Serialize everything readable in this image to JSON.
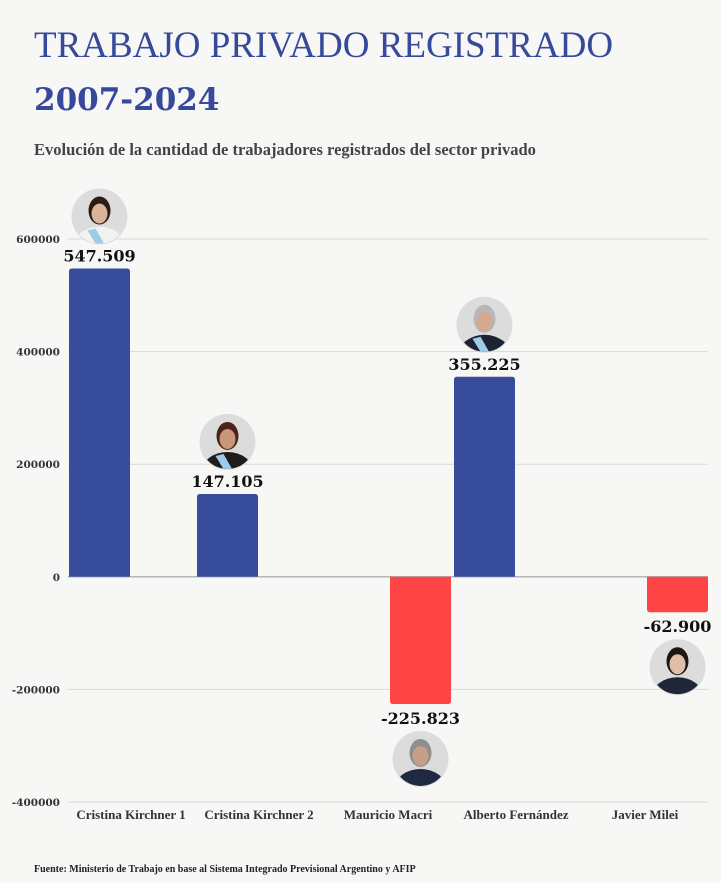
{
  "header": {
    "title_line1": "TRABAJO PRIVADO REGISTRADO",
    "title_line2": "2007-2024",
    "subtitle": "Evolución de la cantidad de trabajadores registrados del sector privado"
  },
  "footer": {
    "source": "Fuente: Ministerio de Trabajo en base al Sistema Integrado Previsional Argentino y AFIP"
  },
  "colors": {
    "positive": "#374c9a",
    "negative": "#fe4444",
    "title": "#36499a",
    "grid": "#d9d9d9",
    "background": "#f7f7f5"
  },
  "chart_data": {
    "type": "bar",
    "title": "TRABAJO PRIVADO REGISTRADO 2007-2024",
    "subtitle": "Evolución de la cantidad de trabajadores registrados del sector privado",
    "xlabel": "",
    "ylabel": "",
    "categories": [
      "Cristina Kirchner 1",
      "Cristina Kirchner 2",
      "Mauricio Macri",
      "Alberto Fernández",
      "Javier Milei"
    ],
    "values": [
      547509,
      147105,
      -225823,
      355225,
      -62900
    ],
    "data_labels": [
      "547.509",
      "147.105",
      "-225.823",
      "355.225",
      "-62.900"
    ],
    "portraits": [
      "portrait-cristina-kirchner-1",
      "portrait-cristina-kirchner-2",
      "portrait-mauricio-macri",
      "portrait-alberto-fernandez",
      "portrait-javier-milei"
    ],
    "ylim": [
      -400000,
      600000
    ],
    "yticks": [
      600000,
      400000,
      200000,
      0,
      -200000,
      -400000
    ],
    "ytick_labels": [
      "600000",
      "400000",
      "200000",
      "0",
      "-200000",
      "-400000"
    ],
    "grid": true,
    "legend": "none"
  }
}
